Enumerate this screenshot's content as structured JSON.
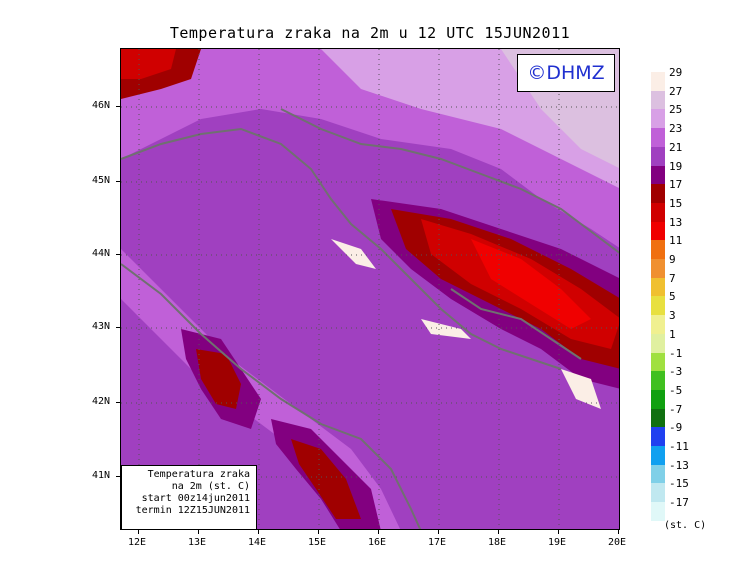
{
  "title": "Temperatura zraka na 2m u 12 UTC 15JUN2011",
  "logo": "©DHMZ",
  "info_box": {
    "line1": "Temperatura zraka",
    "line2": "na 2m (st. C)",
    "line3": "start 00z14jun2011",
    "line4": "termin 12Z15JUN2011"
  },
  "lat_ticks": [
    "46N",
    "45N",
    "44N",
    "43N",
    "42N",
    "41N"
  ],
  "lon_ticks": [
    "12E",
    "13E",
    "14E",
    "15E",
    "16E",
    "17E",
    "18E",
    "19E",
    "20E"
  ],
  "legend": {
    "labels": [
      "29",
      "27",
      "25",
      "23",
      "21",
      "19",
      "17",
      "15",
      "13",
      "11",
      "9",
      "7",
      "5",
      "3",
      "1",
      "-1",
      "-3",
      "-5",
      "-7",
      "-9",
      "-11",
      "-13",
      "-15",
      "-17"
    ],
    "colors": [
      "#fbeee6",
      "#dcc0e0",
      "#d8a0e6",
      "#c060d8",
      "#a040c0",
      "#820080",
      "#a00000",
      "#d00000",
      "#f00000",
      "#f07010",
      "#f09030",
      "#f0c030",
      "#e8e040",
      "#f0f090",
      "#e0f0a0",
      "#a0e040",
      "#40c020",
      "#10a010",
      "#107010",
      "#2040f0",
      "#10a0f0",
      "#80d0e8",
      "#c0e8f0",
      "#e0f8f8"
    ],
    "units": "(st. C)"
  },
  "colors": {
    "sea": "#a040c0",
    "coast": "#707070",
    "hot": "#c00000"
  }
}
